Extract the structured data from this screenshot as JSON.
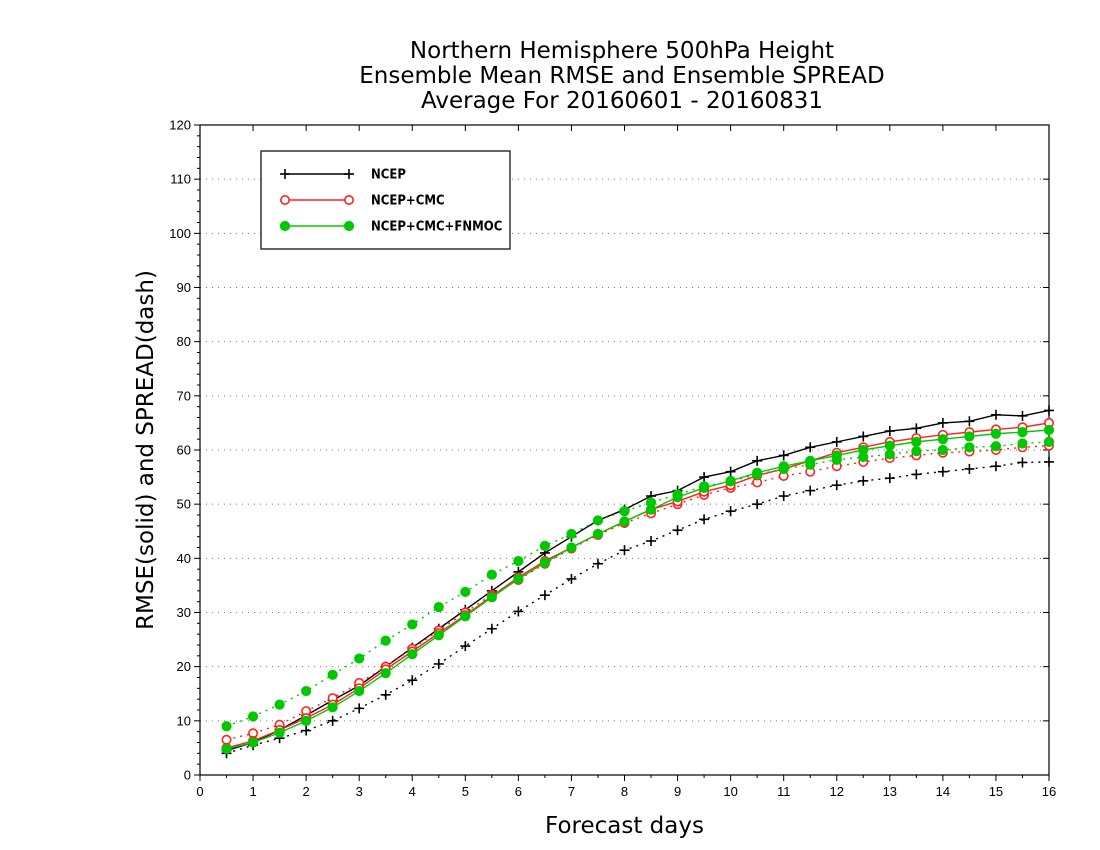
{
  "chart_data": {
    "type": "line",
    "title": [
      "Northern Hemisphere 500hPa Height",
      "Ensemble Mean RMSE and Ensemble SPREAD",
      "Average For 20160601 - 20160831"
    ],
    "xlabel": "Forecast days",
    "ylabel": "RMSE(solid) and SPREAD(dash)",
    "xlim": [
      0,
      16
    ],
    "ylim": [
      0,
      120
    ],
    "xticks": [
      "0",
      "1",
      "2",
      "3",
      "4",
      "5",
      "6",
      "7",
      "8",
      "9",
      "10",
      "11",
      "12",
      "13",
      "14",
      "15",
      "16"
    ],
    "yticks": [
      "0",
      "10",
      "20",
      "30",
      "40",
      "50",
      "60",
      "70",
      "80",
      "90",
      "100",
      "110",
      "120"
    ],
    "grid": "horizontal-dotted",
    "legend_position": "top-left",
    "x": [
      0.5,
      1,
      1.5,
      2,
      2.5,
      3,
      3.5,
      4,
      4.5,
      5,
      5.5,
      6,
      6.5,
      7,
      7.5,
      8,
      8.5,
      9,
      9.5,
      10,
      10.5,
      11,
      11.5,
      12,
      12.5,
      13,
      13.5,
      14,
      14.5,
      15,
      15.5,
      16
    ],
    "series": [
      {
        "name": "NCEP",
        "color": "#000000",
        "marker": "plus",
        "rmse": [
          4.5,
          6.0,
          8.3,
          11.0,
          13.8,
          16.5,
          20.0,
          23.5,
          27.0,
          30.5,
          34.0,
          37.5,
          41.0,
          44.0,
          47.0,
          49.0,
          51.5,
          52.5,
          55.0,
          56.0,
          58.0,
          59.0,
          60.5,
          61.5,
          62.5,
          63.5,
          64.0,
          65.0,
          65.3,
          66.5,
          66.3,
          67.3
        ],
        "spread": [
          4.0,
          5.5,
          6.8,
          8.2,
          10.0,
          12.3,
          14.8,
          17.5,
          20.5,
          23.8,
          27.0,
          30.2,
          33.2,
          36.2,
          39.0,
          41.5,
          43.2,
          45.2,
          47.2,
          48.7,
          50.0,
          51.5,
          52.5,
          53.5,
          54.3,
          54.8,
          55.5,
          56.0,
          56.5,
          57.0,
          57.7,
          57.8
        ]
      },
      {
        "name": "NCEP+CMC",
        "color": "#ff2020",
        "marker": "open-circle",
        "rmse": [
          5.0,
          6.3,
          8.3,
          10.5,
          13.0,
          16.0,
          19.5,
          22.8,
          26.2,
          29.5,
          33.0,
          36.5,
          39.5,
          42.0,
          44.5,
          46.8,
          49.0,
          50.5,
          52.3,
          53.5,
          55.3,
          56.5,
          58.0,
          59.5,
          60.5,
          61.5,
          62.2,
          62.8,
          63.3,
          63.8,
          64.2,
          65.0
        ],
        "spread": [
          6.5,
          7.7,
          9.3,
          11.8,
          14.2,
          17.0,
          20.0,
          23.3,
          26.7,
          30.0,
          33.3,
          36.0,
          39.0,
          41.8,
          44.3,
          46.5,
          48.3,
          50.0,
          51.7,
          53.0,
          54.0,
          55.2,
          56.0,
          57.0,
          57.8,
          58.5,
          59.0,
          59.5,
          59.7,
          60.0,
          60.5,
          60.8
        ]
      },
      {
        "name": "NCEP+CMC+FNMOC",
        "color": "#00c800",
        "marker": "filled-circle",
        "rmse": [
          4.8,
          6.0,
          7.8,
          10.0,
          12.5,
          15.5,
          18.8,
          22.3,
          25.8,
          29.3,
          32.8,
          36.2,
          39.2,
          42.0,
          44.5,
          46.8,
          49.0,
          51.3,
          53.0,
          54.3,
          55.8,
          57.0,
          58.0,
          59.0,
          60.0,
          60.8,
          61.5,
          62.0,
          62.5,
          63.0,
          63.3,
          63.7
        ],
        "spread": [
          9.0,
          10.8,
          13.0,
          15.5,
          18.5,
          21.5,
          24.8,
          27.8,
          31.0,
          33.8,
          37.0,
          39.5,
          42.3,
          44.5,
          47.0,
          48.7,
          50.3,
          51.8,
          53.3,
          54.2,
          55.5,
          56.5,
          57.3,
          58.2,
          58.7,
          59.2,
          59.8,
          60.0,
          60.5,
          60.7,
          61.2,
          61.5
        ]
      }
    ]
  }
}
